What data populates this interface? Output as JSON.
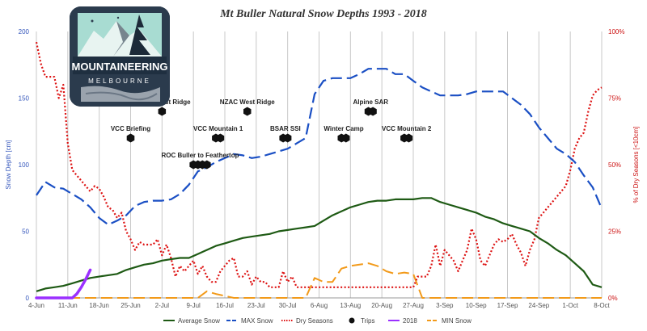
{
  "logo": {
    "line1": "MOUNTAINEERING",
    "line2": "MELBOURNE"
  },
  "chart_data": {
    "type": "line",
    "title": "Mt Buller Natural Snow Depths 1993 - 2018",
    "ylabel_left": "Snow Depth [cm]",
    "ylabel_right": "% of Dry Seasons [<10cm]",
    "ylim_left": [
      0,
      200
    ],
    "ylim_right": [
      0,
      100
    ],
    "yticks_left": [
      "0",
      "50",
      "100",
      "150",
      "200"
    ],
    "yticks_right": [
      "0%",
      "25%",
      "50%",
      "75%",
      "100%"
    ],
    "xticks": [
      "4-Jun",
      "11-Jun",
      "18-Jun",
      "25-Jun",
      "2-Jul",
      "9-Jul",
      "16-Jul",
      "23-Jul",
      "30-Jul",
      "6-Aug",
      "13-Aug",
      "20-Aug",
      "27-Aug",
      "3-Sep",
      "10-Sep",
      "17-Sep",
      "24-Sep",
      "1-Oct",
      "8-Oct"
    ],
    "grid": "vertical",
    "legend_position": "bottom",
    "x_day_range": [
      0,
      126
    ],
    "series": [
      {
        "name": "Average Snow",
        "axis": "left",
        "color": "#1e5a14",
        "style": "solid",
        "x": [
          0,
          2,
          4,
          6,
          8,
          10,
          12,
          14,
          16,
          18,
          20,
          22,
          24,
          26,
          28,
          30,
          32,
          34,
          36,
          38,
          40,
          42,
          44,
          46,
          48,
          50,
          52,
          54,
          56,
          58,
          60,
          62,
          64,
          66,
          68,
          70,
          72,
          74,
          76,
          78,
          80,
          82,
          84,
          86,
          88,
          90,
          92,
          94,
          96,
          98,
          100,
          102,
          104,
          106,
          108,
          110,
          112,
          114,
          116,
          118,
          120,
          122,
          124,
          126
        ],
        "y": [
          5,
          7,
          8,
          9,
          11,
          13,
          15,
          16,
          17,
          18,
          21,
          23,
          25,
          26,
          28,
          29,
          30,
          30,
          33,
          36,
          39,
          41,
          43,
          45,
          46,
          47,
          48,
          50,
          51,
          52,
          53,
          54,
          58,
          62,
          65,
          68,
          70,
          72,
          73,
          73,
          74,
          74,
          74,
          75,
          75,
          72,
          70,
          68,
          66,
          64,
          61,
          59,
          56,
          54,
          52,
          50,
          45,
          41,
          36,
          32,
          26,
          20,
          10,
          8
        ]
      },
      {
        "name": "MAX Snow",
        "axis": "left",
        "color": "#1a4fc4",
        "style": "dashed",
        "x": [
          0,
          2,
          4,
          6,
          8,
          10,
          12,
          14,
          16,
          18,
          20,
          22,
          24,
          26,
          28,
          30,
          32,
          34,
          36,
          38,
          40,
          42,
          44,
          46,
          48,
          50,
          52,
          54,
          56,
          58,
          60,
          62,
          64,
          66,
          68,
          70,
          72,
          74,
          76,
          78,
          80,
          82,
          84,
          86,
          88,
          90,
          92,
          94,
          96,
          98,
          100,
          102,
          104,
          106,
          108,
          110,
          112,
          114,
          116,
          118,
          120,
          122,
          124,
          126
        ],
        "y": [
          77,
          87,
          83,
          82,
          78,
          74,
          68,
          60,
          55,
          58,
          62,
          69,
          72,
          73,
          73,
          74,
          78,
          85,
          95,
          98,
          102,
          105,
          108,
          107,
          105,
          106,
          108,
          110,
          112,
          116,
          120,
          153,
          163,
          165,
          165,
          165,
          168,
          172,
          172,
          172,
          168,
          168,
          163,
          158,
          155,
          152,
          152,
          152,
          153,
          155,
          155,
          155,
          155,
          150,
          145,
          138,
          128,
          120,
          112,
          108,
          102,
          92,
          83,
          67
        ]
      },
      {
        "name": "Dry Seasons",
        "axis": "right",
        "color": "#dd1111",
        "style": "dotted",
        "x": [
          0,
          1,
          2,
          3,
          4,
          5,
          6,
          7,
          8,
          9,
          10,
          11,
          12,
          13,
          14,
          15,
          16,
          17,
          18,
          19,
          20,
          21,
          22,
          23,
          24,
          25,
          26,
          27,
          28,
          29,
          30,
          31,
          32,
          33,
          34,
          35,
          36,
          37,
          38,
          39,
          40,
          41,
          42,
          43,
          44,
          45,
          46,
          47,
          48,
          49,
          50,
          51,
          52,
          53,
          54,
          55,
          56,
          57,
          58,
          59,
          60,
          61,
          62,
          63,
          64,
          65,
          66,
          67,
          68,
          69,
          70,
          71,
          72,
          73,
          74,
          75,
          76,
          77,
          78,
          79,
          80,
          81,
          82,
          83,
          84,
          85,
          86,
          87,
          88,
          89,
          90,
          91,
          92,
          93,
          94,
          95,
          96,
          97,
          98,
          99,
          100,
          101,
          102,
          103,
          104,
          105,
          106,
          107,
          108,
          109,
          110,
          111,
          112,
          113,
          114,
          115,
          116,
          117,
          118,
          119,
          120,
          121,
          122,
          123,
          124,
          125,
          126
        ],
        "y": [
          96,
          88,
          83,
          83,
          83,
          75,
          80,
          58,
          48,
          46,
          44,
          42,
          40,
          42,
          41,
          38,
          34,
          33,
          30,
          32,
          25,
          22,
          18,
          21,
          20,
          20,
          20,
          22,
          16,
          20,
          15,
          8,
          12,
          10,
          12,
          14,
          9,
          12,
          8,
          6,
          6,
          10,
          12,
          14,
          15,
          8,
          8,
          10,
          5,
          8,
          6,
          6,
          4,
          4,
          4,
          10,
          6,
          8,
          4,
          4,
          4,
          4,
          4,
          4,
          4,
          4,
          4,
          4,
          4,
          4,
          4,
          4,
          4,
          4,
          4,
          4,
          4,
          4,
          4,
          4,
          4,
          4,
          4,
          4,
          4,
          8,
          8,
          8,
          12,
          20,
          12,
          18,
          16,
          14,
          10,
          14,
          18,
          26,
          22,
          14,
          12,
          16,
          20,
          22,
          21,
          22,
          24,
          20,
          17,
          12,
          18,
          22,
          30,
          32,
          34,
          36,
          38,
          40,
          42,
          48,
          56,
          60,
          62,
          70,
          76,
          78,
          79
        ]
      },
      {
        "name": "MIN Snow",
        "axis": "left",
        "color": "#f29a1a",
        "style": "dashed",
        "x": [
          0,
          4,
          8,
          12,
          16,
          20,
          24,
          28,
          32,
          36,
          38,
          40,
          44,
          48,
          52,
          54,
          56,
          58,
          60,
          62,
          64,
          66,
          68,
          70,
          72,
          74,
          76,
          78,
          80,
          82,
          84,
          86,
          88,
          90,
          92,
          94,
          96,
          98,
          100,
          102,
          104,
          106,
          108,
          110,
          112,
          114,
          116,
          118,
          120,
          122,
          124,
          126
        ],
        "y": [
          0,
          0,
          0,
          0,
          0,
          0,
          0,
          0,
          0,
          0,
          5,
          3,
          0,
          0,
          0,
          0,
          0,
          0,
          0,
          15,
          12,
          12,
          22,
          24,
          25,
          26,
          24,
          20,
          18,
          19,
          18,
          0,
          0,
          0,
          0,
          0,
          0,
          0,
          0,
          0,
          0,
          0,
          0,
          0,
          0,
          0,
          0,
          0,
          0,
          0,
          0,
          0
        ]
      },
      {
        "name": "2018",
        "axis": "left",
        "color": "#9b30ff",
        "style": "solid",
        "x": [
          0,
          3,
          6,
          8,
          9,
          10,
          11,
          12
        ],
        "y": [
          0,
          0,
          0,
          0,
          3,
          8,
          14,
          21
        ]
      }
    ],
    "trips": [
      {
        "name": "VCC Briefing",
        "x": [
          21
        ],
        "y": 120
      },
      {
        "name": "MUMC West Ridge",
        "x": [
          28
        ],
        "y": 140
      },
      {
        "name": "ROC Buller to Feathertop",
        "x": [
          35,
          36,
          37,
          38
        ],
        "y": 100
      },
      {
        "name": "VCC Mountain 1",
        "x": [
          40,
          41
        ],
        "y": 120
      },
      {
        "name": "NZAC West Ridge",
        "x": [
          47
        ],
        "y": 140
      },
      {
        "name": "BSAR SSI",
        "x": [
          55,
          56
        ],
        "y": 120
      },
      {
        "name": "Winter Camp",
        "x": [
          68,
          69
        ],
        "y": 120
      },
      {
        "name": "Alpine SAR",
        "x": [
          74,
          75
        ],
        "y": 140
      },
      {
        "name": "VCC Mountain 2",
        "x": [
          82,
          83
        ],
        "y": 120
      }
    ],
    "legend": [
      "Average Snow",
      "MAX Snow",
      "Dry Seasons",
      "Trips",
      "2018",
      "MIN Snow"
    ]
  }
}
